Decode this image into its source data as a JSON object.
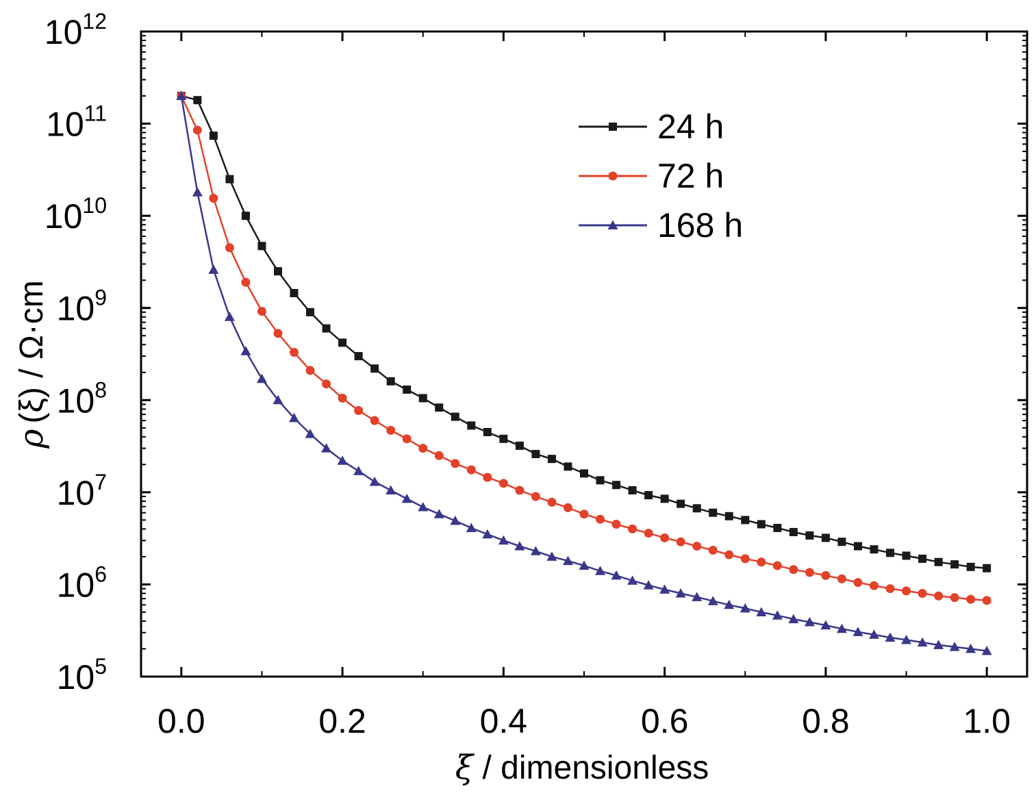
{
  "chart_data": {
    "type": "line",
    "xlabel_symbol": "ξ",
    "xlabel_text": " / dimensionless",
    "ylabel_symbol": "ρ",
    "ylabel_arg": "(ξ)",
    "ylabel_unit": " / Ω·cm",
    "xlim": [
      -0.05,
      1.05
    ],
    "ylim": [
      100000,
      1000000000000
    ],
    "y_scale": "log",
    "grid": false,
    "legend_position": "top-center",
    "x_ticks": [
      "0.0",
      "0.2",
      "0.4",
      "0.6",
      "0.8",
      "1.0"
    ],
    "x_tick_values": [
      0,
      0.2,
      0.4,
      0.6,
      0.8,
      1.0
    ],
    "y_ticks": [
      {
        "base": "10",
        "exp": "5",
        "value": 100000
      },
      {
        "base": "10",
        "exp": "6",
        "value": 1000000
      },
      {
        "base": "10",
        "exp": "7",
        "value": 10000000
      },
      {
        "base": "10",
        "exp": "8",
        "value": 100000000
      },
      {
        "base": "10",
        "exp": "9",
        "value": 1000000000
      },
      {
        "base": "10",
        "exp": "10",
        "value": 10000000000
      },
      {
        "base": "10",
        "exp": "11",
        "value": 100000000000
      },
      {
        "base": "10",
        "exp": "12",
        "value": 1000000000000
      }
    ],
    "series": [
      {
        "name": "24 h",
        "color": "#1a1a1a",
        "marker": "square",
        "x": [
          0,
          0.02,
          0.04,
          0.06,
          0.08,
          0.1,
          0.12,
          0.14,
          0.16,
          0.18,
          0.2,
          0.22,
          0.24,
          0.26,
          0.28,
          0.3,
          0.32,
          0.34,
          0.36,
          0.38,
          0.4,
          0.42,
          0.44,
          0.46,
          0.48,
          0.5,
          0.52,
          0.54,
          0.56,
          0.58,
          0.6,
          0.62,
          0.64,
          0.66,
          0.68,
          0.7,
          0.72,
          0.74,
          0.76,
          0.78,
          0.8,
          0.82,
          0.84,
          0.86,
          0.88,
          0.9,
          0.92,
          0.94,
          0.96,
          0.98,
          1.0
        ],
        "y": [
          200000000000.0,
          180000000000.0,
          74000000000.0,
          25000000000.0,
          10000000000.0,
          4700000000.0,
          2500000000.0,
          1450000000.0,
          900000000.0,
          600000000.0,
          420000000.0,
          300000000.0,
          220000000.0,
          160000000.0,
          130000000.0,
          105000000.0,
          83000000.0,
          66000000.0,
          53000000.0,
          45000000.0,
          38000000.0,
          32000000.0,
          26000000.0,
          23000000.0,
          19000000.0,
          16000000.0,
          13500000.0,
          12000000.0,
          10500000.0,
          9300000.0,
          8500000.0,
          7500000.0,
          6700000.0,
          6000000.0,
          5500000.0,
          5000000.0,
          4500000.0,
          4100000.0,
          3700000.0,
          3400000.0,
          3200000.0,
          2900000.0,
          2600000.0,
          2400000.0,
          2200000.0,
          2050000.0,
          1900000.0,
          1750000.0,
          1650000.0,
          1550000.0,
          1500000.0
        ]
      },
      {
        "name": "72 h",
        "color": "#e2412a",
        "marker": "circle",
        "x": [
          0,
          0.02,
          0.04,
          0.06,
          0.08,
          0.1,
          0.12,
          0.14,
          0.16,
          0.18,
          0.2,
          0.22,
          0.24,
          0.26,
          0.28,
          0.3,
          0.32,
          0.34,
          0.36,
          0.38,
          0.4,
          0.42,
          0.44,
          0.46,
          0.48,
          0.5,
          0.52,
          0.54,
          0.56,
          0.58,
          0.6,
          0.62,
          0.64,
          0.66,
          0.68,
          0.7,
          0.72,
          0.74,
          0.76,
          0.78,
          0.8,
          0.82,
          0.84,
          0.86,
          0.88,
          0.9,
          0.92,
          0.94,
          0.96,
          0.98,
          1.0
        ],
        "y": [
          200000000000.0,
          85000000000.0,
          15500000000.0,
          4500000000.0,
          1900000000.0,
          920000000.0,
          530000000.0,
          330000000.0,
          210000000.0,
          150000000.0,
          105000000.0,
          77000000.0,
          60000000.0,
          47000000.0,
          38000000.0,
          30000000.0,
          25000000.0,
          20500000.0,
          17500000.0,
          14500000.0,
          12500000.0,
          10500000.0,
          9000000.0,
          7800000.0,
          6800000.0,
          5800000.0,
          5100000.0,
          4500000.0,
          4000000.0,
          3600000.0,
          3200000.0,
          2900000.0,
          2600000.0,
          2350000.0,
          2100000.0,
          1900000.0,
          1750000.0,
          1600000.0,
          1450000.0,
          1350000.0,
          1250000.0,
          1150000.0,
          1050000.0,
          970000.0,
          900000.0,
          850000.0,
          800000.0,
          750000.0,
          720000.0,
          690000.0,
          670000.0
        ]
      },
      {
        "name": "168 h",
        "color": "#38388a",
        "marker": "triangle",
        "x": [
          0,
          0.02,
          0.04,
          0.06,
          0.08,
          0.1,
          0.12,
          0.14,
          0.16,
          0.18,
          0.2,
          0.22,
          0.24,
          0.26,
          0.28,
          0.3,
          0.32,
          0.34,
          0.36,
          0.38,
          0.4,
          0.42,
          0.44,
          0.46,
          0.48,
          0.5,
          0.52,
          0.54,
          0.56,
          0.58,
          0.6,
          0.62,
          0.64,
          0.66,
          0.68,
          0.7,
          0.72,
          0.74,
          0.76,
          0.78,
          0.8,
          0.82,
          0.84,
          0.86,
          0.88,
          0.9,
          0.92,
          0.94,
          0.96,
          0.98,
          1.0
        ],
        "y": [
          200000000000.0,
          18000000000.0,
          2600000000.0,
          800000000.0,
          340000000.0,
          170000000.0,
          100000000.0,
          64000000.0,
          43000000.0,
          30000000.0,
          22000000.0,
          17000000.0,
          13000000.0,
          10500000.0,
          8500000.0,
          6900000.0,
          5800000.0,
          4900000.0,
          4100000.0,
          3500000.0,
          3000000.0,
          2600000.0,
          2300000.0,
          2000000.0,
          1800000.0,
          1600000.0,
          1400000.0,
          1250000.0,
          1100000.0,
          980000.0,
          880000.0,
          800000.0,
          730000.0,
          660000.0,
          600000.0,
          550000.0,
          500000.0,
          460000.0,
          420000.0,
          390000.0,
          360000.0,
          330000.0,
          305000.0,
          285000.0,
          265000.0,
          250000.0,
          235000.0,
          220000.0,
          210000.0,
          200000.0,
          190000.0
        ]
      }
    ]
  }
}
